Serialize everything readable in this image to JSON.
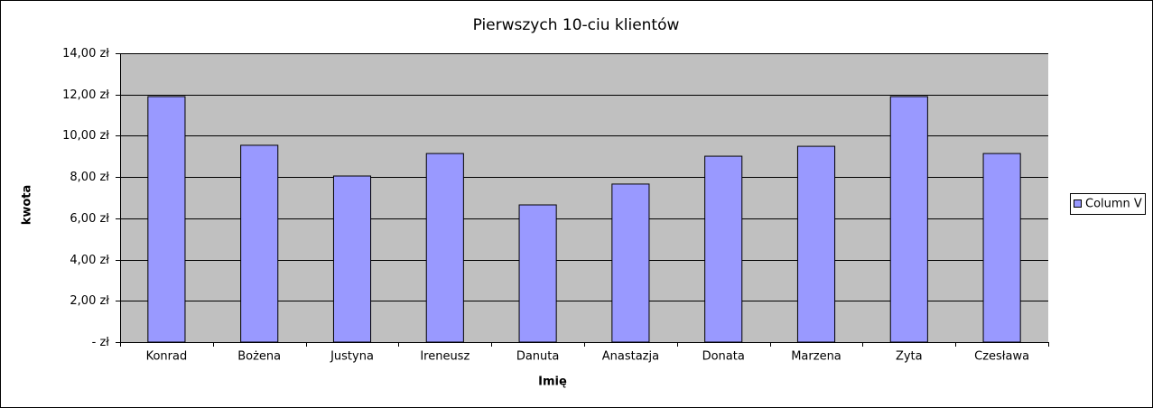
{
  "chart_data": {
    "type": "bar",
    "title": "Pierwszych 10-ciu klientów",
    "x_label": "Imię",
    "y_label": "kwota",
    "categories": [
      "Konrad",
      "Bożena",
      "Justyna",
      "Ireneusz",
      "Danuta",
      "Anastazja",
      "Donata",
      "Marzena",
      "Zyta",
      "Czesława"
    ],
    "series": [
      {
        "name": "Column V",
        "color": "#9999ff",
        "values": [
          11.9,
          9.54,
          8.05,
          9.14,
          6.65,
          7.66,
          9.01,
          9.49,
          11.9,
          9.14
        ]
      }
    ],
    "ylim": [
      0,
      14
    ],
    "yticks": [
      {
        "value": 0,
        "label": "-  zł"
      },
      {
        "value": 2,
        "label": "2,00 zł"
      },
      {
        "value": 4,
        "label": "4,00 zł"
      },
      {
        "value": 6,
        "label": "6,00 zł"
      },
      {
        "value": 8,
        "label": "8,00 zł"
      },
      {
        "value": 10,
        "label": "10,00 zł"
      },
      {
        "value": 12,
        "label": "12,00 zł"
      },
      {
        "value": 14,
        "label": "14,00 zł"
      }
    ],
    "grid": true,
    "legend": "right"
  }
}
